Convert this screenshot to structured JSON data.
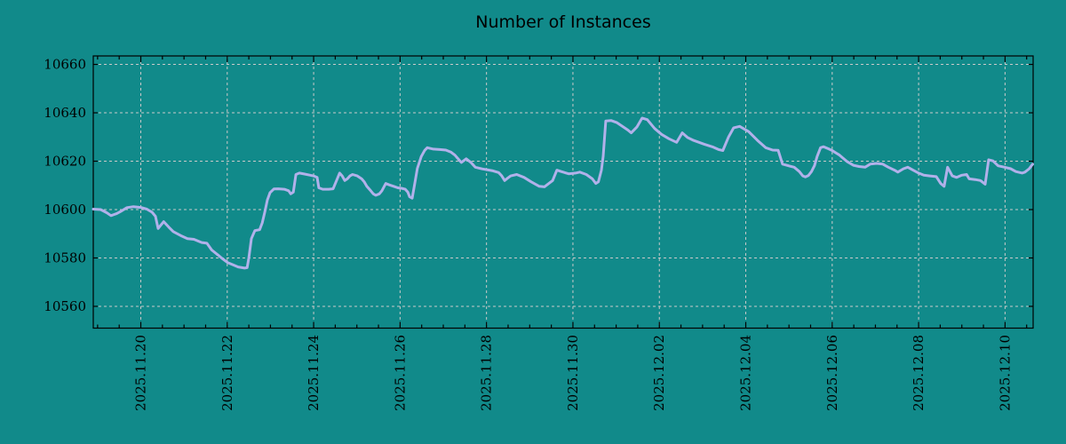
{
  "colors": {
    "background": "#118a8a",
    "line": "#b1b1ea",
    "grid": "#c9c9c9",
    "text": "#000000",
    "frame": "#000000"
  },
  "chart_data": {
    "type": "line",
    "title": "Number of Instances",
    "xlabel": "",
    "ylabel": "",
    "grid": true,
    "legend": "none",
    "x_unit": "days (0 = 2025.11.19)",
    "xlim": [
      -0.1,
      21.65
    ],
    "ylim": [
      10551,
      10663.5
    ],
    "y_ticks": [
      10560,
      10580,
      10600,
      10620,
      10640,
      10660
    ],
    "x_minor_step": 0.5,
    "x_ticks": [
      {
        "day": 1,
        "label": "2025.11.20"
      },
      {
        "day": 3,
        "label": "2025.11.22"
      },
      {
        "day": 5,
        "label": "2025.11.24"
      },
      {
        "day": 7,
        "label": "2025.11.26"
      },
      {
        "day": 9,
        "label": "2025.11.28"
      },
      {
        "day": 11,
        "label": "2025.11.30"
      },
      {
        "day": 13,
        "label": "2025.12.02"
      },
      {
        "day": 15,
        "label": "2025.12.04"
      },
      {
        "day": 17,
        "label": "2025.12.06"
      },
      {
        "day": 19,
        "label": "2025.12.08"
      },
      {
        "day": 21,
        "label": "2025.12.10"
      }
    ],
    "series": [
      {
        "name": "instances",
        "color": "#b1b1ea",
        "points": [
          [
            -0.1,
            10600.2
          ],
          [
            0.07,
            10600.0
          ],
          [
            0.21,
            10598.7
          ],
          [
            0.31,
            10597.5
          ],
          [
            0.44,
            10598.3
          ],
          [
            0.56,
            10599.5
          ],
          [
            0.68,
            10600.8
          ],
          [
            0.83,
            10601.2
          ],
          [
            1.0,
            10600.9
          ],
          [
            1.14,
            10600.2
          ],
          [
            1.26,
            10598.9
          ],
          [
            1.34,
            10597.2
          ],
          [
            1.4,
            10592.2
          ],
          [
            1.53,
            10595.0
          ],
          [
            1.65,
            10592.7
          ],
          [
            1.75,
            10590.9
          ],
          [
            1.92,
            10589.3
          ],
          [
            2.08,
            10588.0
          ],
          [
            2.23,
            10587.7
          ],
          [
            2.41,
            10586.4
          ],
          [
            2.53,
            10586.1
          ],
          [
            2.64,
            10583.3
          ],
          [
            2.78,
            10581.3
          ],
          [
            2.88,
            10579.8
          ],
          [
            3.01,
            10578.1
          ],
          [
            3.13,
            10577.2
          ],
          [
            3.25,
            10576.3
          ],
          [
            3.4,
            10575.8
          ],
          [
            3.46,
            10576.0
          ],
          [
            3.5,
            10580.0
          ],
          [
            3.56,
            10588.0
          ],
          [
            3.64,
            10591.3
          ],
          [
            3.75,
            10591.7
          ],
          [
            3.81,
            10594.5
          ],
          [
            3.87,
            10599.0
          ],
          [
            3.93,
            10604.0
          ],
          [
            3.99,
            10607.0
          ],
          [
            4.08,
            10608.5
          ],
          [
            4.18,
            10608.6
          ],
          [
            4.32,
            10608.4
          ],
          [
            4.42,
            10607.8
          ],
          [
            4.47,
            10606.5
          ],
          [
            4.53,
            10607.2
          ],
          [
            4.59,
            10614.5
          ],
          [
            4.67,
            10615.1
          ],
          [
            4.79,
            10614.7
          ],
          [
            4.92,
            10614.2
          ],
          [
            5.0,
            10613.9
          ],
          [
            5.08,
            10613.3
          ],
          [
            5.12,
            10609.0
          ],
          [
            5.21,
            10608.4
          ],
          [
            5.35,
            10608.4
          ],
          [
            5.45,
            10608.6
          ],
          [
            5.56,
            10613.3
          ],
          [
            5.6,
            10615.1
          ],
          [
            5.66,
            10613.9
          ],
          [
            5.72,
            10612.0
          ],
          [
            5.78,
            10612.7
          ],
          [
            5.84,
            10613.9
          ],
          [
            5.9,
            10614.5
          ],
          [
            6.01,
            10613.9
          ],
          [
            6.11,
            10612.7
          ],
          [
            6.17,
            10611.5
          ],
          [
            6.23,
            10609.6
          ],
          [
            6.32,
            10607.8
          ],
          [
            6.38,
            10606.5
          ],
          [
            6.44,
            10605.9
          ],
          [
            6.52,
            10606.5
          ],
          [
            6.58,
            10607.8
          ],
          [
            6.67,
            10610.8
          ],
          [
            6.75,
            10610.2
          ],
          [
            6.85,
            10609.6
          ],
          [
            6.95,
            10609.0
          ],
          [
            7.03,
            10608.8
          ],
          [
            7.12,
            10608.4
          ],
          [
            7.18,
            10607.2
          ],
          [
            7.22,
            10605.3
          ],
          [
            7.28,
            10604.7
          ],
          [
            7.34,
            10610.8
          ],
          [
            7.4,
            10617.0
          ],
          [
            7.49,
            10621.9
          ],
          [
            7.57,
            10624.5
          ],
          [
            7.63,
            10625.6
          ],
          [
            7.77,
            10625.0
          ],
          [
            7.92,
            10624.8
          ],
          [
            8.06,
            10624.6
          ],
          [
            8.18,
            10623.7
          ],
          [
            8.27,
            10622.5
          ],
          [
            8.39,
            10620.0
          ],
          [
            8.42,
            10619.5
          ],
          [
            8.53,
            10621.0
          ],
          [
            8.64,
            10619.5
          ],
          [
            8.74,
            10617.5
          ],
          [
            8.9,
            10616.8
          ],
          [
            9.15,
            10616.0
          ],
          [
            9.28,
            10615.3
          ],
          [
            9.35,
            10614.0
          ],
          [
            9.42,
            10612.0
          ],
          [
            9.49,
            10613.0
          ],
          [
            9.56,
            10613.9
          ],
          [
            9.7,
            10614.5
          ],
          [
            9.87,
            10613.3
          ],
          [
            10.03,
            10611.5
          ],
          [
            10.22,
            10609.6
          ],
          [
            10.34,
            10609.4
          ],
          [
            10.53,
            10612.0
          ],
          [
            10.63,
            10616.3
          ],
          [
            10.73,
            10615.7
          ],
          [
            10.9,
            10614.8
          ],
          [
            11.06,
            10615.1
          ],
          [
            11.16,
            10615.5
          ],
          [
            11.31,
            10614.5
          ],
          [
            11.45,
            10612.7
          ],
          [
            11.53,
            10610.8
          ],
          [
            11.59,
            10611.5
          ],
          [
            11.66,
            10616.3
          ],
          [
            11.7,
            10622.0
          ],
          [
            11.76,
            10636.6
          ],
          [
            11.88,
            10636.8
          ],
          [
            12.01,
            10636.0
          ],
          [
            12.17,
            10634.1
          ],
          [
            12.27,
            10632.9
          ],
          [
            12.35,
            10631.7
          ],
          [
            12.48,
            10634.1
          ],
          [
            12.6,
            10637.8
          ],
          [
            12.72,
            10637.2
          ],
          [
            12.89,
            10633.5
          ],
          [
            13.05,
            10631.1
          ],
          [
            13.22,
            10629.3
          ],
          [
            13.4,
            10627.8
          ],
          [
            13.53,
            10631.7
          ],
          [
            13.65,
            10629.8
          ],
          [
            13.79,
            10628.6
          ],
          [
            14.04,
            10627.0
          ],
          [
            14.25,
            10625.8
          ],
          [
            14.37,
            10624.8
          ],
          [
            14.47,
            10624.4
          ],
          [
            14.6,
            10630.0
          ],
          [
            14.72,
            10633.8
          ],
          [
            14.86,
            10634.4
          ],
          [
            15.07,
            10632.2
          ],
          [
            15.27,
            10628.6
          ],
          [
            15.46,
            10625.6
          ],
          [
            15.62,
            10624.6
          ],
          [
            15.75,
            10624.5
          ],
          [
            15.85,
            10618.8
          ],
          [
            15.99,
            10618.1
          ],
          [
            16.12,
            10617.5
          ],
          [
            16.24,
            10615.7
          ],
          [
            16.32,
            10613.9
          ],
          [
            16.38,
            10613.5
          ],
          [
            16.45,
            10614.1
          ],
          [
            16.52,
            10615.7
          ],
          [
            16.59,
            10618.2
          ],
          [
            16.65,
            10621.9
          ],
          [
            16.73,
            10625.6
          ],
          [
            16.8,
            10626.0
          ],
          [
            16.9,
            10625.2
          ],
          [
            17.0,
            10624.4
          ],
          [
            17.08,
            10623.5
          ],
          [
            17.17,
            10622.5
          ],
          [
            17.23,
            10621.6
          ],
          [
            17.35,
            10619.8
          ],
          [
            17.49,
            10618.3
          ],
          [
            17.62,
            10617.8
          ],
          [
            17.76,
            10617.5
          ],
          [
            17.88,
            10618.8
          ],
          [
            18.03,
            10619.1
          ],
          [
            18.17,
            10618.8
          ],
          [
            18.3,
            10617.5
          ],
          [
            18.44,
            10616.3
          ],
          [
            18.52,
            10615.5
          ],
          [
            18.65,
            10616.9
          ],
          [
            18.75,
            10617.5
          ],
          [
            18.87,
            10616.3
          ],
          [
            19.0,
            10615.1
          ],
          [
            19.12,
            10614.2
          ],
          [
            19.26,
            10613.9
          ],
          [
            19.41,
            10613.6
          ],
          [
            19.51,
            10610.8
          ],
          [
            19.59,
            10609.6
          ],
          [
            19.67,
            10617.5
          ],
          [
            19.78,
            10613.9
          ],
          [
            19.88,
            10613.3
          ],
          [
            20.0,
            10614.2
          ],
          [
            20.11,
            10614.5
          ],
          [
            20.17,
            10612.7
          ],
          [
            20.31,
            10612.4
          ],
          [
            20.43,
            10612.0
          ],
          [
            20.54,
            10610.5
          ],
          [
            20.62,
            10620.6
          ],
          [
            20.72,
            10620.1
          ],
          [
            20.84,
            10618.1
          ],
          [
            20.99,
            10617.5
          ],
          [
            21.13,
            10616.9
          ],
          [
            21.25,
            10615.7
          ],
          [
            21.4,
            10615.1
          ],
          [
            21.46,
            10615.5
          ],
          [
            21.56,
            10616.9
          ],
          [
            21.64,
            10618.8
          ]
        ]
      }
    ]
  }
}
